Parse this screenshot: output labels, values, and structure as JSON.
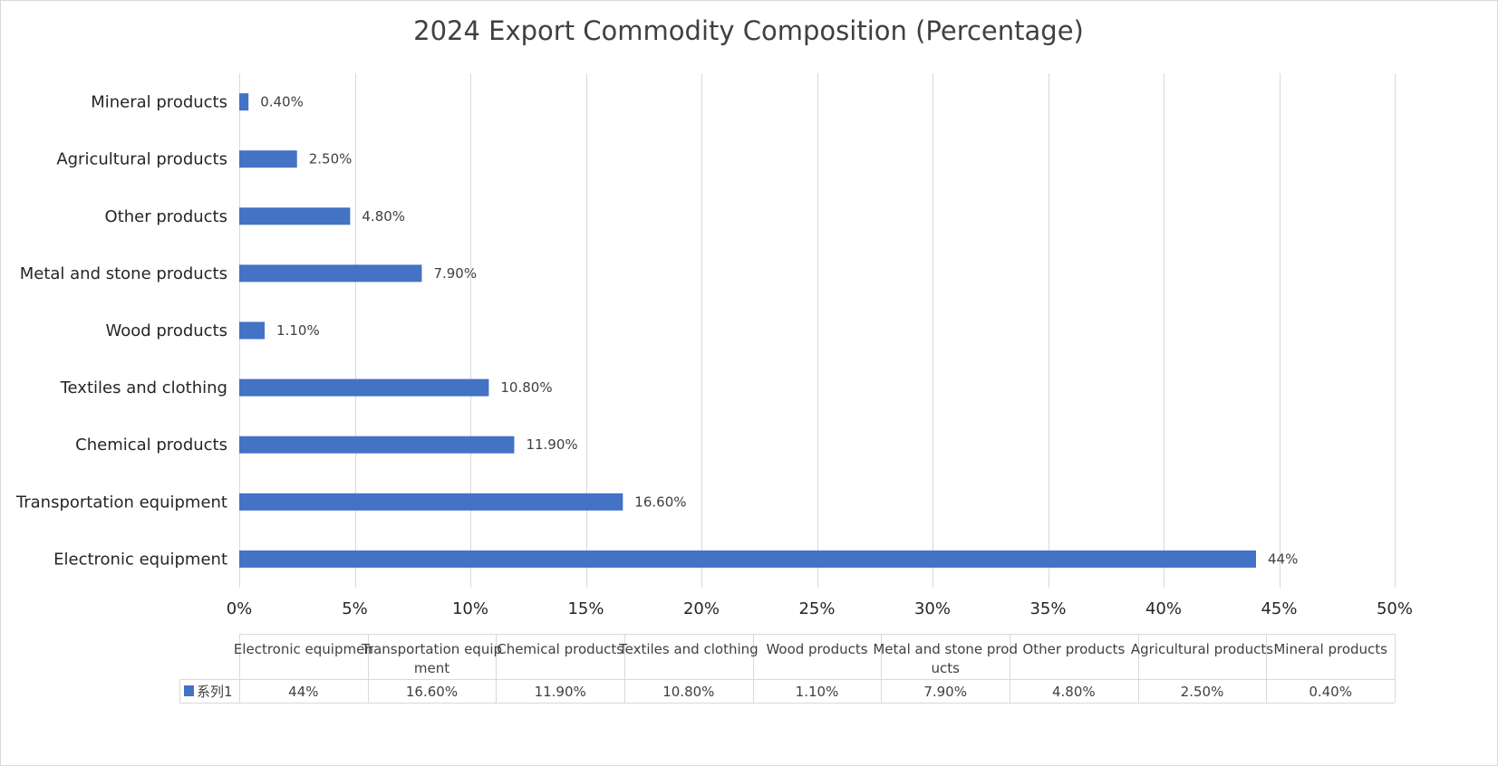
{
  "chart_data": {
    "type": "bar",
    "orientation": "horizontal",
    "title": "2024 Export Commodity Composition (Percentage)",
    "categories": [
      "Electronic equipment",
      "Transportation equipment",
      "Chemical products",
      "Textiles and clothing",
      "Wood products",
      "Metal and stone products",
      "Other products",
      "Agricultural products",
      "Mineral products"
    ],
    "table_headers": [
      "Electronic equipmen",
      "Transportation equip\nment",
      "Chemical products",
      "Textiles and clothing",
      "Wood products",
      "Metal and stone prod\nucts",
      "Other products",
      "Agricultural products",
      "Mineral products"
    ],
    "series": [
      {
        "name": "系列1",
        "values": [
          44,
          16.6,
          11.9,
          10.8,
          1.1,
          7.9,
          4.8,
          2.5,
          0.4
        ],
        "labels": [
          "44%",
          "16.60%",
          "11.90%",
          "10.80%",
          "1.10%",
          "7.90%",
          "4.80%",
          "2.50%",
          "0.40%"
        ],
        "color": "#4472c4"
      }
    ],
    "xlim": [
      0,
      50
    ],
    "xticks": [
      0,
      5,
      10,
      15,
      20,
      25,
      30,
      35,
      40,
      45,
      50
    ],
    "xtick_labels": [
      "0%",
      "5%",
      "10%",
      "15%",
      "20%",
      "25%",
      "30%",
      "35%",
      "40%",
      "45%",
      "50%"
    ],
    "grid": true,
    "legend": "data-table-below"
  }
}
